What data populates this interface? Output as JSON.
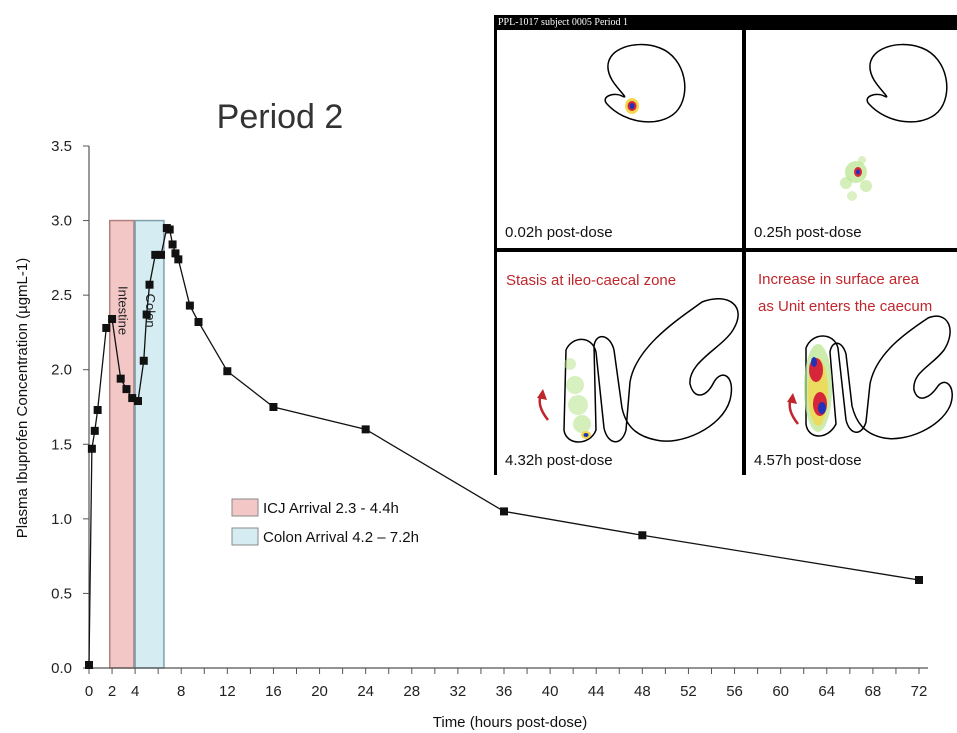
{
  "chart_data": {
    "type": "line",
    "title": "Period 2",
    "xlabel": "Time (hours post-dose)",
    "ylabel": "Plasma Ibuprofen Concentration (µgmL-1)",
    "xlim": [
      0,
      72
    ],
    "ylim": [
      0,
      3.5
    ],
    "xticks": [
      0,
      2,
      4,
      8,
      12,
      16,
      20,
      24,
      28,
      32,
      36,
      40,
      44,
      48,
      52,
      56,
      60,
      64,
      68,
      72
    ],
    "yticks": [
      "0.0",
      "0.5",
      "1.0",
      "1.5",
      "2.0",
      "2.5",
      "3.0",
      "3.5"
    ],
    "grid": false,
    "series": [
      {
        "color": "#111111",
        "marker": "square",
        "x": [
          0,
          0.25,
          0.5,
          0.75,
          1.5,
          2,
          2.75,
          3.25,
          3.75,
          4.25,
          4.75,
          5,
          5.25,
          5.75,
          6.25,
          6.75,
          7,
          7.25,
          7.5,
          7.75,
          8.75,
          9.5,
          12,
          16,
          24,
          36,
          48,
          72
        ],
        "y": [
          0.02,
          1.47,
          1.59,
          1.73,
          2.28,
          2.34,
          1.94,
          1.87,
          1.81,
          1.79,
          2.06,
          2.37,
          2.57,
          2.77,
          2.77,
          2.95,
          2.94,
          2.84,
          2.78,
          2.74,
          2.43,
          2.32,
          1.99,
          1.75,
          1.6,
          1.05,
          0.89,
          0.59
        ]
      }
    ],
    "bands": [
      {
        "label": "Intestine",
        "x0": 1.8,
        "x1": 3.9,
        "ymax": 3.0,
        "fill": "#f4c7c7",
        "stroke": "#b08080"
      },
      {
        "label": "Colon",
        "x0": 4.0,
        "x1": 6.5,
        "ymax": 3.0,
        "fill": "#d5ecf3",
        "stroke": "#7fa0aa"
      }
    ],
    "legend": {
      "placement": "center",
      "entries": [
        {
          "label": "ICJ Arrival 2.3 - 4.4h",
          "color": "#f4c7c7"
        },
        {
          "label": "Colon Arrival 4.2 – 7.2h",
          "color": "#d5ecf3"
        }
      ]
    }
  },
  "inset": {
    "header": "PPL-1017 subject 0005 Period 1",
    "panels": [
      {
        "time_label": "0.02h post-dose"
      },
      {
        "time_label": "0.25h post-dose"
      },
      {
        "time_label": "4.32h post-dose",
        "note": [
          "Stasis at ileo-caecal zone"
        ]
      },
      {
        "time_label": "4.57h post-dose",
        "note": [
          "Increase in surface area",
          "as Unit enters the caecum"
        ]
      }
    ]
  }
}
